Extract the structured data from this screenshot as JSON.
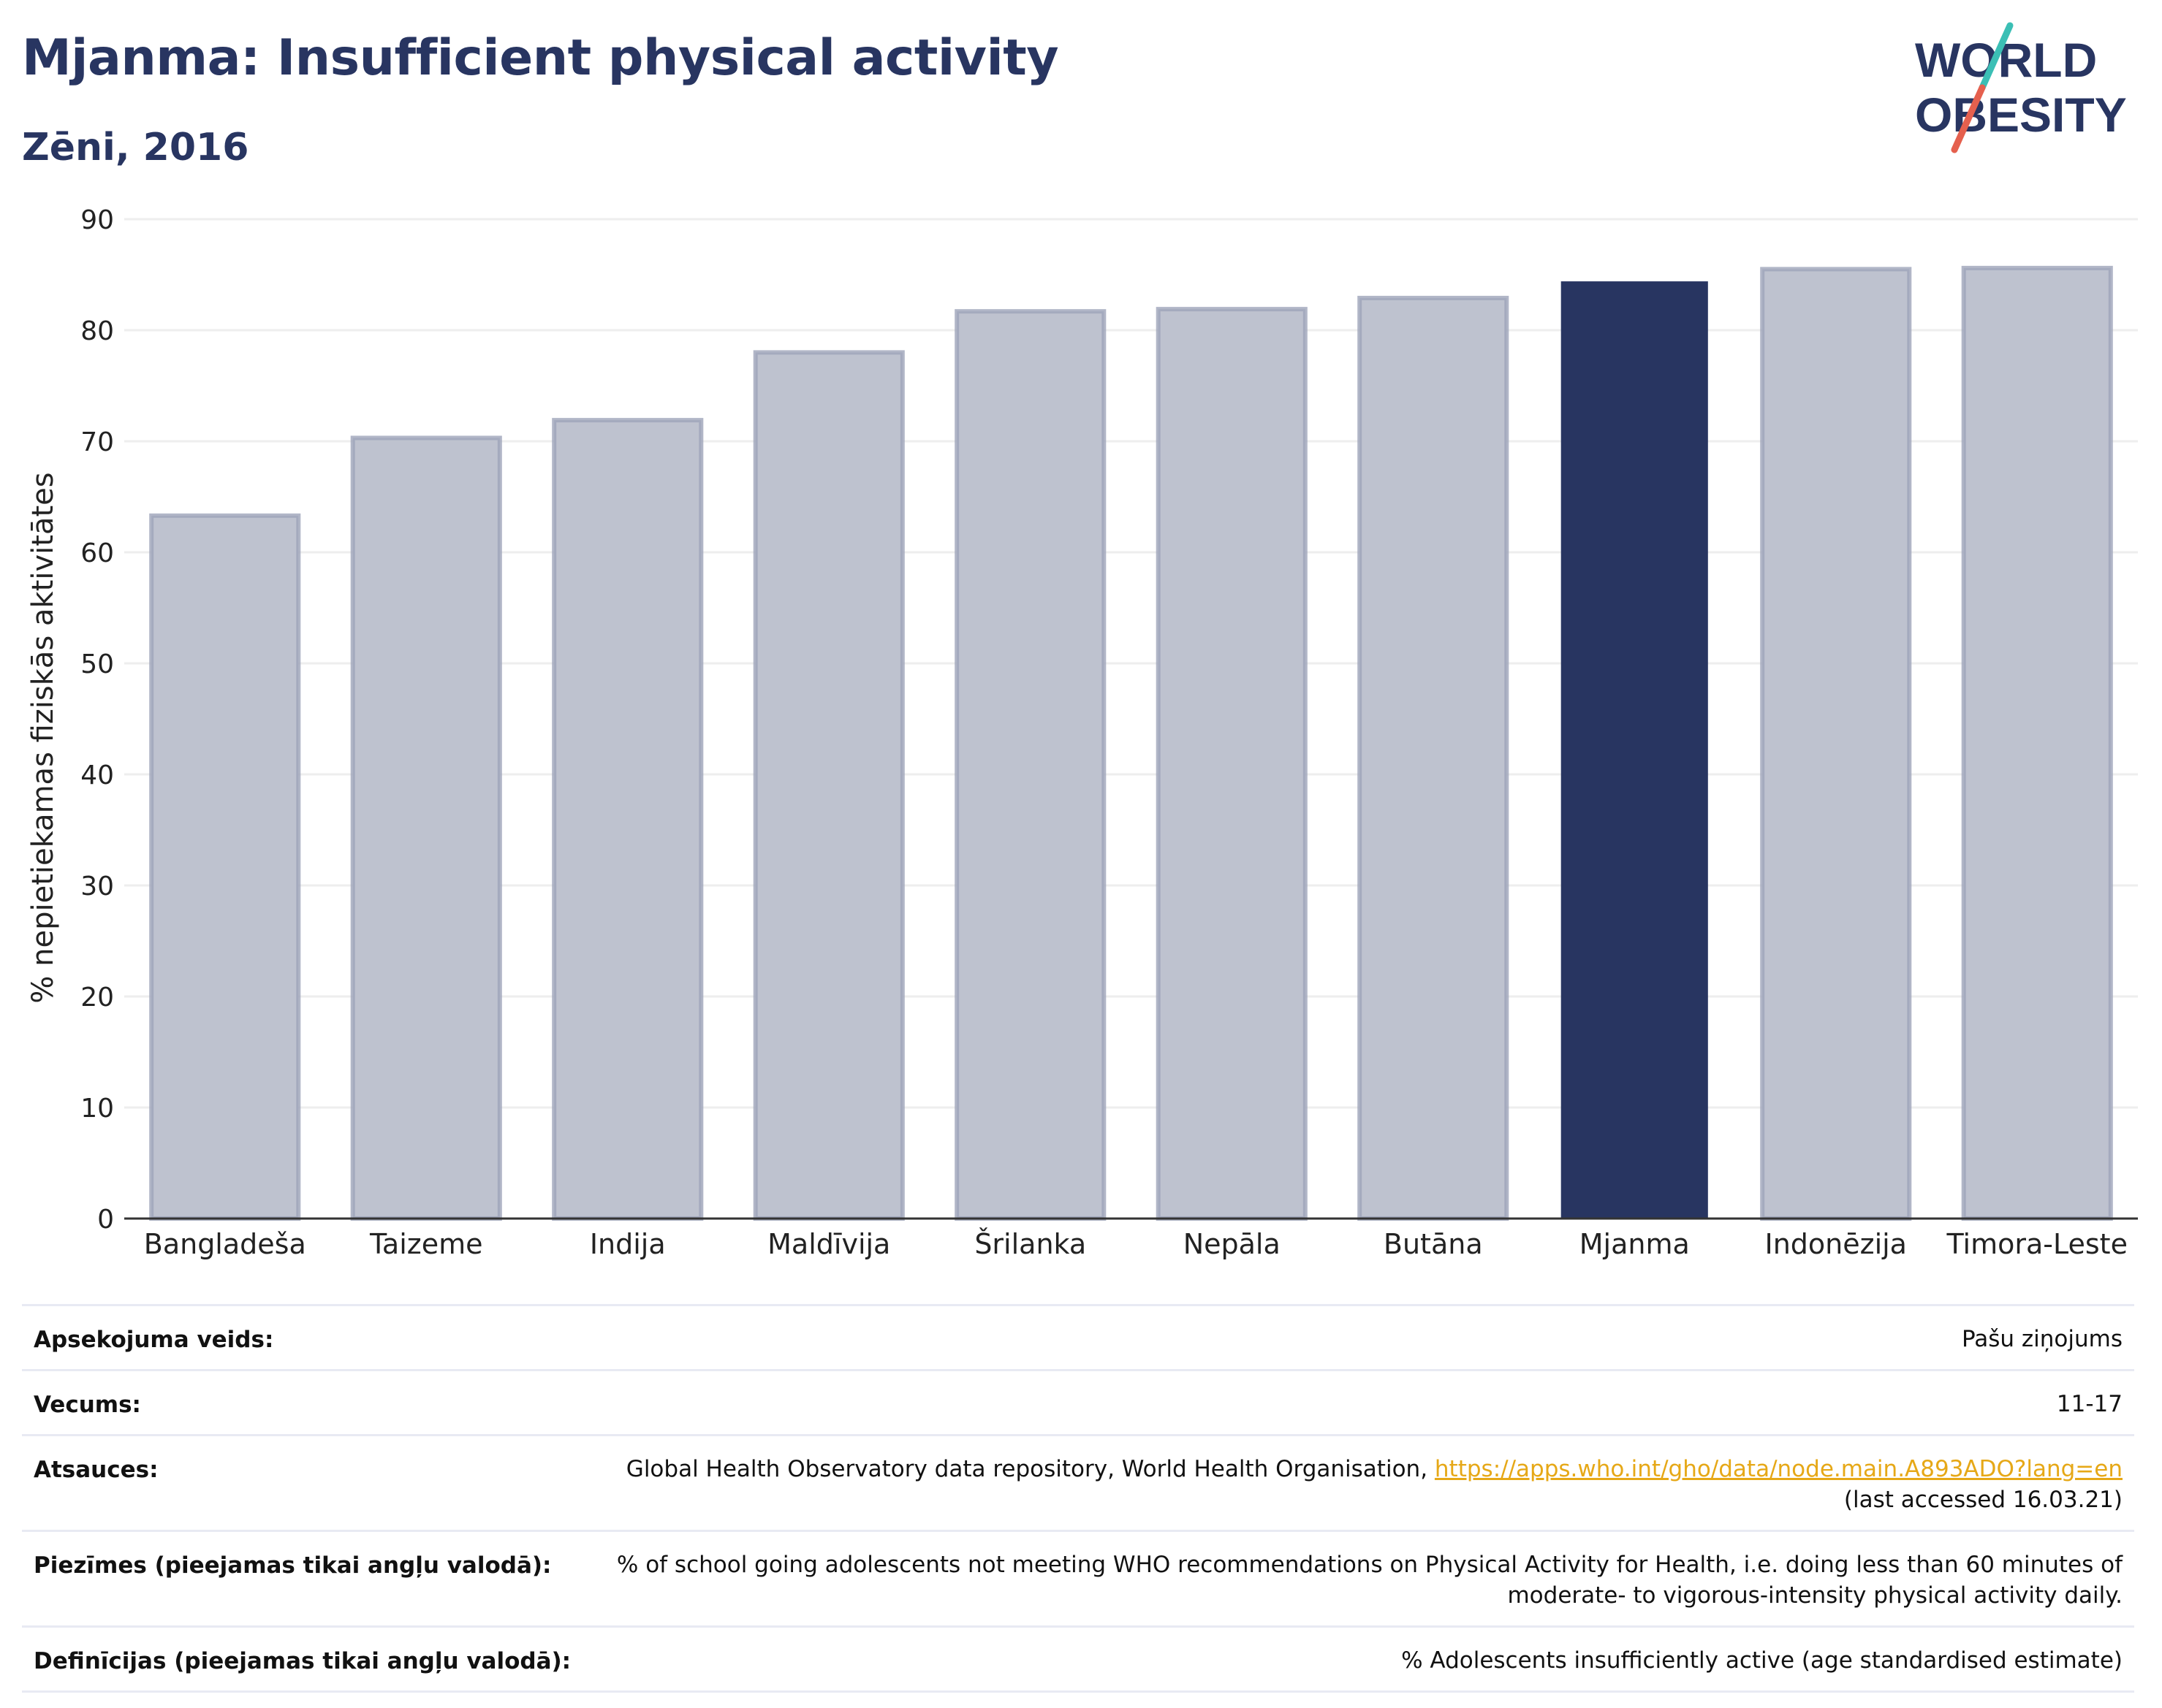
{
  "header": {
    "title": "Mjanma: Insufficient physical activity",
    "subtitle": "Zēni, 2016"
  },
  "logo": {
    "line1": "WORLD",
    "line2": "OBESITY",
    "text_color": "#283561",
    "slash_colors": [
      "#3bbfb5",
      "#e5604e"
    ]
  },
  "chart_data": {
    "type": "bar",
    "categories": [
      "Bangladeša",
      "Taizeme",
      "Indija",
      "Maldīvija",
      "Šrilanka",
      "Nepāla",
      "Butāna",
      "Mjanma",
      "Indonēzija",
      "Timora-Leste"
    ],
    "values": [
      63.3,
      70.3,
      71.9,
      78.0,
      81.7,
      81.9,
      82.9,
      84.4,
      85.5,
      85.6
    ],
    "highlight": "Mjanma",
    "ylabel": "% nepietiekamas fiziskās aktivitātes",
    "xlabel": "",
    "ylim": [
      0,
      90
    ],
    "yticks": [
      0,
      10,
      20,
      30,
      40,
      50,
      60,
      70,
      80,
      90
    ],
    "grid": true,
    "colors": {
      "bar": "#bec2cf",
      "bar_border": "#9ea4b9",
      "highlight": "#283561",
      "grid": "#eeeeee",
      "axis": "#333333"
    }
  },
  "info_table": [
    {
      "key": "Apsekojuma veids:",
      "value": "Pašu ziņojums"
    },
    {
      "key": "Vecums:",
      "value": "11-17"
    },
    {
      "key": "Atsauces:",
      "value": "Global Health Observatory data repository, World Health Organisation, ",
      "link": "https://apps.who.int/gho/data/node.main.A893ADO?lang=en",
      "value2": "(last accessed 16.03.21)"
    },
    {
      "key": "Piezīmes (pieejamas tikai angļu valodā):",
      "value": "% of school going adolescents not meeting WHO recommendations on Physical Activity for Health, i.e. doing less than 60 minutes of",
      "value2": "moderate- to vigorous-intensity physical activity daily."
    },
    {
      "key": "Definīcijas (pieejamas tikai angļu valodā):",
      "value": "% Adolescents insufficiently active (age standardised estimate)"
    }
  ]
}
